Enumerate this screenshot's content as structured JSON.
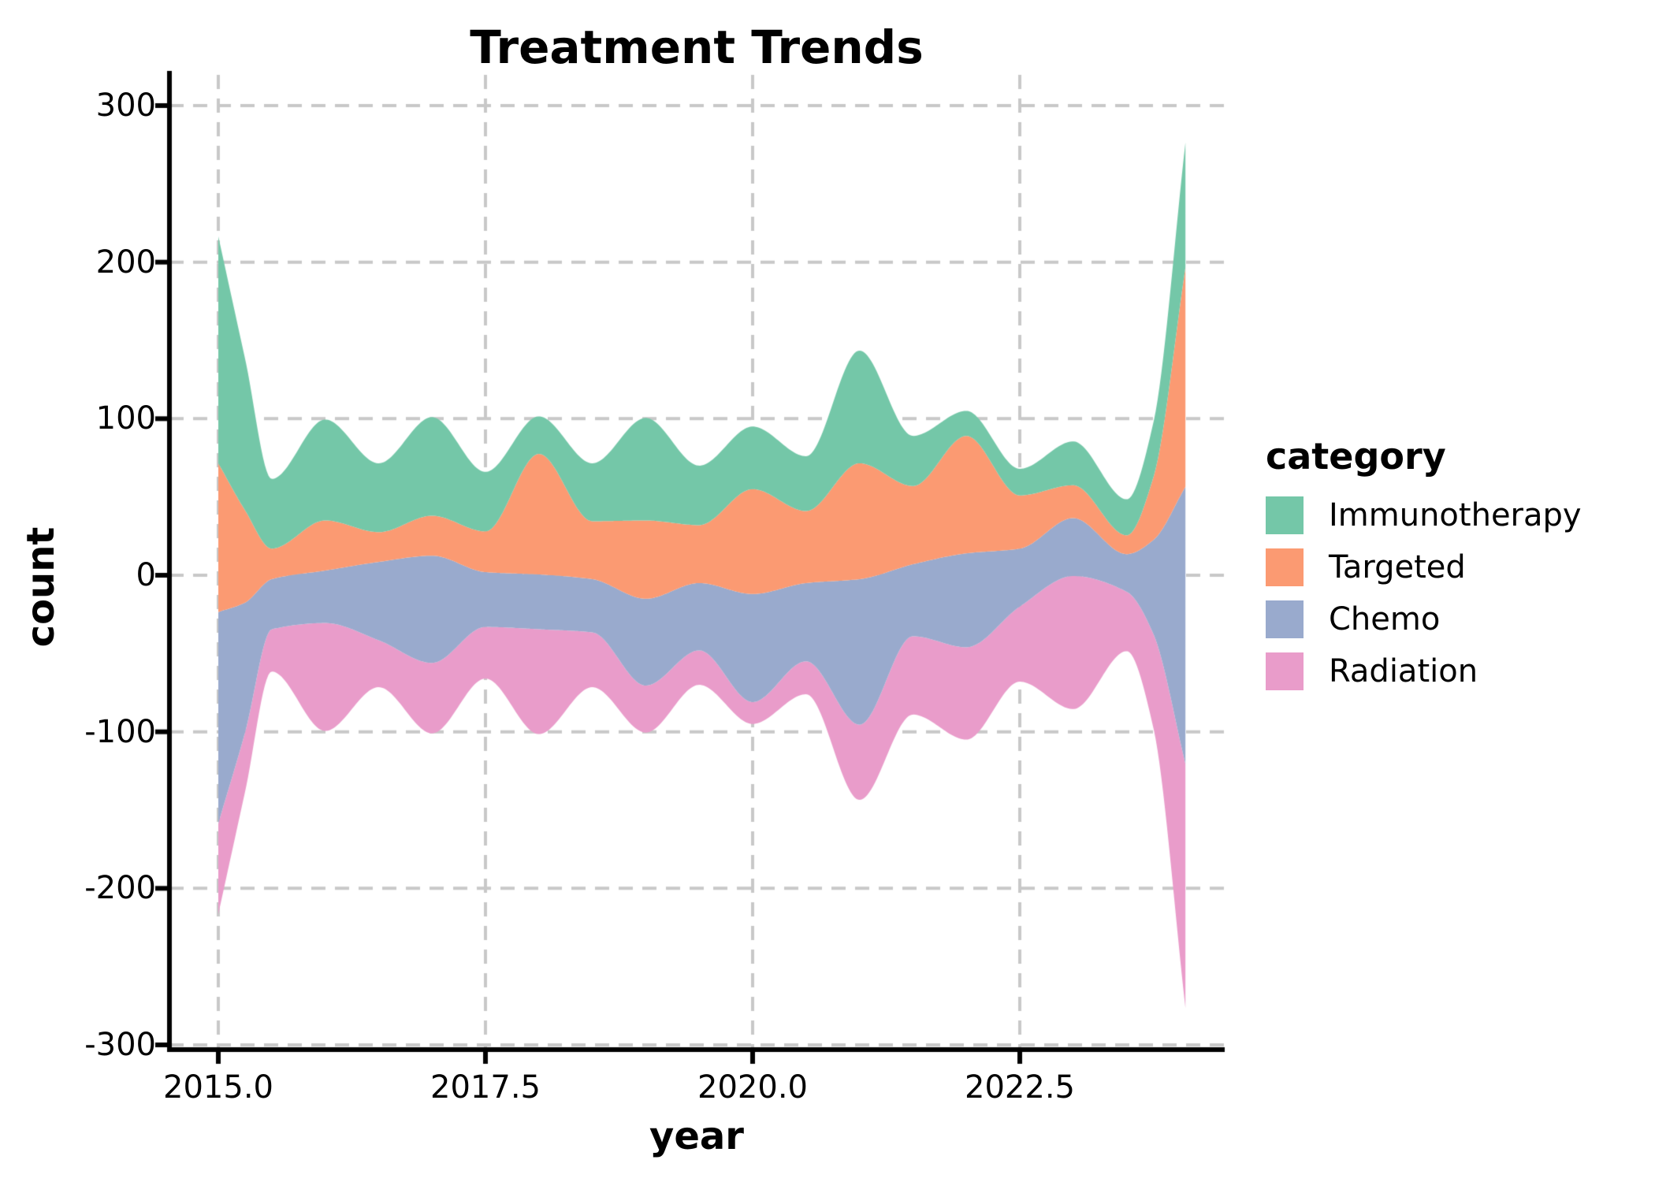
{
  "title": "Treatment Trends",
  "chart_data": {
    "type": "area",
    "variant": "streamgraph (stacked area mirrored symmetrically around 0)",
    "title": "Treatment Trends",
    "xlabel": "year",
    "ylabel": "count",
    "legend_title": "category",
    "legend_position": "right",
    "grid": "dashed gray, on",
    "background_color": "#ffffff",
    "grid_color": "#c8c8c8",
    "axis_color": "#000000",
    "xlim": [
      2014.55,
      2024.45
    ],
    "ylim": [
      -300,
      300
    ],
    "x_ticks": [
      2015.0,
      2017.5,
      2020.0,
      2022.5
    ],
    "x_tick_labels": [
      "2015.0",
      "2017.5",
      "2020.0",
      "2022.5"
    ],
    "y_ticks": [
      300,
      200,
      100,
      0,
      -100,
      -200,
      -300
    ],
    "y_tick_labels": [
      "300",
      "200",
      "100",
      "0",
      "-100",
      "-200",
      "-300"
    ],
    "x": [
      2015.0,
      2015.25,
      2015.5,
      2016.0,
      2016.5,
      2017.0,
      2017.5,
      2018.0,
      2018.5,
      2019.0,
      2019.5,
      2020.0,
      2020.5,
      2021.0,
      2021.5,
      2022.0,
      2022.5,
      2023.0,
      2023.5,
      2023.75,
      2024.05
    ],
    "series": [
      {
        "name": "Immunotherapy",
        "color": "#74c7a8",
        "values": [
          145,
          97,
          44.5,
          64.5,
          44,
          63,
          38,
          24,
          37,
          65.5,
          38,
          40,
          35,
          72,
          32,
          16,
          17,
          28,
          23,
          35,
          80
        ]
      },
      {
        "name": "Targeted",
        "color": "#fb9a72",
        "values": [
          95,
          59,
          19.5,
          32,
          19,
          25.5,
          26,
          77,
          37,
          50,
          37,
          67,
          46,
          74,
          50,
          75,
          34,
          21,
          12,
          40,
          140
        ]
      },
      {
        "name": "Chemo",
        "color": "#99aacd",
        "values": [
          135,
          83,
          32,
          33.5,
          50,
          68.5,
          35,
          35,
          34,
          55.5,
          43,
          69,
          50,
          93,
          46,
          60,
          37,
          37,
          24,
          60,
          177
        ]
      },
      {
        "name": "Radiation",
        "color": "#e99cca",
        "values": [
          58,
          38,
          27,
          69,
          30,
          45,
          33,
          67,
          35,
          30,
          22,
          14,
          21,
          48,
          50,
          59,
          48,
          85,
          38,
          60,
          156
        ]
      }
    ],
    "series_order_note": "listed top band to bottom band; stream is widest at integer years (edge spikes at 2015.0 top ~215/bottom ~-218 and at 2024.05 top ~278/bottom ~-273)"
  },
  "legend": {
    "title": "category",
    "items": [
      {
        "label": "Immunotherapy",
        "color": "#74c7a8"
      },
      {
        "label": "Targeted",
        "color": "#fb9a72"
      },
      {
        "label": "Chemo",
        "color": "#99aacd"
      },
      {
        "label": "Radiation",
        "color": "#e99cca"
      }
    ]
  }
}
